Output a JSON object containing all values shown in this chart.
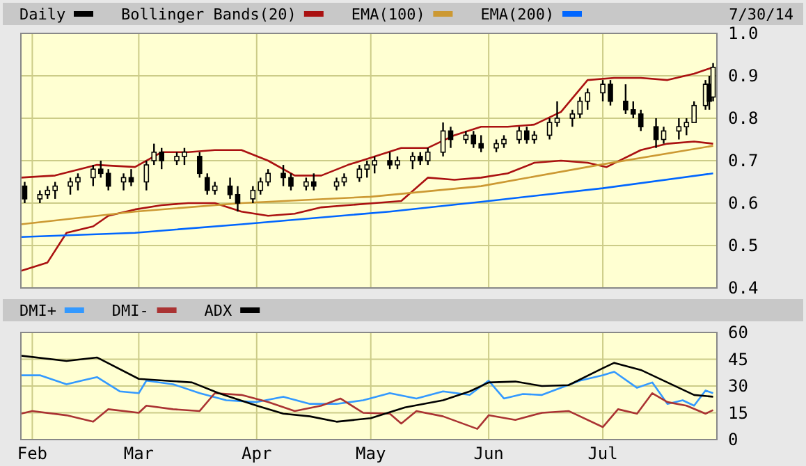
{
  "chart_data": [
    {
      "type": "candlestick",
      "annotations": [
        "7/30/14"
      ],
      "xlim": [
        "--01-29",
        "--07-31"
      ],
      "xticks": [
        {
          "value": "--02-01",
          "label": null
        },
        {
          "value": "--03-01",
          "label": null
        },
        {
          "value": "--04-01",
          "label": null
        },
        {
          "value": "--05-01",
          "label": null
        },
        {
          "value": "--06-01",
          "label": null
        },
        {
          "value": "--07-01",
          "label": null
        }
      ],
      "ylim": [
        0.4,
        1.0
      ],
      "yticks": [
        {
          "value": 0.4,
          "label": "0.4"
        },
        {
          "value": 0.5,
          "label": "0.5"
        },
        {
          "value": 0.6,
          "label": "0.6"
        },
        {
          "value": 0.7,
          "label": "0.7"
        },
        {
          "value": 0.8,
          "label": "0.8"
        },
        {
          "value": 0.9,
          "label": "0.9"
        },
        {
          "value": 1.0,
          "label": "1.0"
        }
      ],
      "tick_labels": "y",
      "grid": true,
      "legend": "top left",
      "series": [
        {
          "type": "candlestick",
          "name": "Daily",
          "color": "#000000",
          "x": [
            "--01-30",
            "--02-03",
            "--02-05",
            "--02-07",
            "--02-11",
            "--02-13",
            "--02-17",
            "--02-19",
            "--02-21",
            "--02-25",
            "--02-27",
            "--03-03",
            "--03-05",
            "--03-07",
            "--03-11",
            "--03-13",
            "--03-17",
            "--03-19",
            "--03-21",
            "--03-25",
            "--03-27",
            "--03-31",
            "--04-02",
            "--04-04",
            "--04-08",
            "--04-10",
            "--04-14",
            "--04-16",
            "--04-22",
            "--04-24",
            "--04-28",
            "--04-30",
            "--05-02",
            "--05-06",
            "--05-08",
            "--05-12",
            "--05-14",
            "--05-16",
            "--05-20",
            "--05-22",
            "--05-26",
            "--05-28",
            "--05-30",
            "--06-03",
            "--06-05",
            "--06-09",
            "--06-11",
            "--06-13",
            "--06-17",
            "--06-19",
            "--06-23",
            "--06-25",
            "--06-27",
            "--07-01",
            "--07-03",
            "--07-07",
            "--07-09",
            "--07-11",
            "--07-15",
            "--07-17",
            "--07-21",
            "--07-23",
            "--07-25",
            "--07-28",
            "--07-29",
            "--07-30"
          ],
          "ohlc": [
            [
              0.64,
              0.65,
              0.6,
              0.61
            ],
            [
              0.61,
              0.63,
              0.6,
              0.62
            ],
            [
              0.62,
              0.64,
              0.61,
              0.63
            ],
            [
              0.63,
              0.65,
              0.61,
              0.64
            ],
            [
              0.64,
              0.66,
              0.62,
              0.65
            ],
            [
              0.65,
              0.67,
              0.63,
              0.66
            ],
            [
              0.66,
              0.69,
              0.64,
              0.68
            ],
            [
              0.68,
              0.7,
              0.66,
              0.67
            ],
            [
              0.67,
              0.68,
              0.63,
              0.64
            ],
            [
              0.65,
              0.67,
              0.63,
              0.66
            ],
            [
              0.66,
              0.68,
              0.64,
              0.65
            ],
            [
              0.65,
              0.7,
              0.63,
              0.69
            ],
            [
              0.7,
              0.74,
              0.69,
              0.72
            ],
            [
              0.72,
              0.73,
              0.68,
              0.7
            ],
            [
              0.7,
              0.72,
              0.69,
              0.71
            ],
            [
              0.71,
              0.73,
              0.69,
              0.72
            ],
            [
              0.71,
              0.72,
              0.66,
              0.67
            ],
            [
              0.66,
              0.67,
              0.62,
              0.63
            ],
            [
              0.63,
              0.65,
              0.62,
              0.64
            ],
            [
              0.64,
              0.66,
              0.61,
              0.62
            ],
            [
              0.62,
              0.64,
              0.58,
              0.6
            ],
            [
              0.61,
              0.64,
              0.6,
              0.63
            ],
            [
              0.63,
              0.66,
              0.62,
              0.65
            ],
            [
              0.65,
              0.68,
              0.64,
              0.67
            ],
            [
              0.67,
              0.69,
              0.64,
              0.66
            ],
            [
              0.66,
              0.67,
              0.63,
              0.64
            ],
            [
              0.64,
              0.66,
              0.63,
              0.65
            ],
            [
              0.65,
              0.67,
              0.63,
              0.64
            ],
            [
              0.64,
              0.66,
              0.63,
              0.65
            ],
            [
              0.65,
              0.67,
              0.64,
              0.66
            ],
            [
              0.66,
              0.69,
              0.65,
              0.68
            ],
            [
              0.68,
              0.7,
              0.66,
              0.69
            ],
            [
              0.69,
              0.71,
              0.67,
              0.7
            ],
            [
              0.7,
              0.72,
              0.68,
              0.69
            ],
            [
              0.69,
              0.71,
              0.68,
              0.7
            ],
            [
              0.7,
              0.72,
              0.68,
              0.71
            ],
            [
              0.71,
              0.72,
              0.69,
              0.7
            ],
            [
              0.7,
              0.73,
              0.69,
              0.72
            ],
            [
              0.72,
              0.79,
              0.71,
              0.77
            ],
            [
              0.77,
              0.78,
              0.73,
              0.75
            ],
            [
              0.75,
              0.77,
              0.74,
              0.76
            ],
            [
              0.76,
              0.77,
              0.73,
              0.74
            ],
            [
              0.74,
              0.76,
              0.72,
              0.73
            ],
            [
              0.73,
              0.75,
              0.72,
              0.74
            ],
            [
              0.74,
              0.76,
              0.73,
              0.75
            ],
            [
              0.75,
              0.78,
              0.74,
              0.77
            ],
            [
              0.77,
              0.78,
              0.74,
              0.75
            ],
            [
              0.75,
              0.77,
              0.74,
              0.76
            ],
            [
              0.76,
              0.8,
              0.75,
              0.79
            ],
            [
              0.79,
              0.84,
              0.78,
              0.8
            ],
            [
              0.8,
              0.82,
              0.78,
              0.81
            ],
            [
              0.81,
              0.85,
              0.8,
              0.84
            ],
            [
              0.84,
              0.87,
              0.82,
              0.86
            ],
            [
              0.86,
              0.89,
              0.84,
              0.88
            ],
            [
              0.88,
              0.89,
              0.83,
              0.84
            ],
            [
              0.84,
              0.88,
              0.81,
              0.82
            ],
            [
              0.82,
              0.84,
              0.8,
              0.81
            ],
            [
              0.81,
              0.82,
              0.77,
              0.78
            ],
            [
              0.78,
              0.8,
              0.73,
              0.75
            ],
            [
              0.75,
              0.78,
              0.74,
              0.77
            ],
            [
              0.77,
              0.8,
              0.75,
              0.78
            ],
            [
              0.78,
              0.8,
              0.76,
              0.79
            ],
            [
              0.79,
              0.84,
              0.79,
              0.83
            ],
            [
              0.83,
              0.89,
              0.82,
              0.88
            ],
            [
              0.88,
              0.9,
              0.82,
              0.84
            ],
            [
              0.85,
              0.93,
              0.84,
              0.92
            ]
          ]
        },
        {
          "type": "line",
          "name": "Bollinger Bands(20)",
          "color": "#aa1111",
          "x": [
            "--01-29",
            "--02-07",
            "--02-18",
            "--02-28",
            "--03-07",
            "--03-14",
            "--03-21",
            "--03-28",
            "--04-04",
            "--04-11",
            "--04-18",
            "--04-25",
            "--05-02",
            "--05-09",
            "--05-16",
            "--05-23",
            "--05-30",
            "--06-06",
            "--06-13",
            "--06-20",
            "--06-27",
            "--07-04",
            "--07-11",
            "--07-18",
            "--07-25",
            "--07-30"
          ],
          "values": [
            0.66,
            0.665,
            0.69,
            0.685,
            0.72,
            0.72,
            0.725,
            0.725,
            0.7,
            0.665,
            0.665,
            0.69,
            0.71,
            0.73,
            0.73,
            0.76,
            0.78,
            0.78,
            0.785,
            0.815,
            0.89,
            0.895,
            0.895,
            0.89,
            0.905,
            0.92
          ]
        },
        {
          "type": "line",
          "color": "#aa1111",
          "x": [
            "--01-29",
            "--02-05",
            "--02-10",
            "--02-17",
            "--02-21",
            "--02-28",
            "--03-07",
            "--03-14",
            "--03-21",
            "--03-28",
            "--04-04",
            "--04-11",
            "--04-18",
            "--04-25",
            "--05-02",
            "--05-09",
            "--05-16",
            "--05-23",
            "--05-30",
            "--06-06",
            "--06-13",
            "--06-20",
            "--06-27",
            "--07-02",
            "--07-11",
            "--07-18",
            "--07-25",
            "--07-30"
          ],
          "values": [
            0.44,
            0.46,
            0.53,
            0.545,
            0.57,
            0.585,
            0.595,
            0.6,
            0.6,
            0.58,
            0.57,
            0.575,
            0.59,
            0.595,
            0.6,
            0.605,
            0.66,
            0.655,
            0.66,
            0.67,
            0.695,
            0.7,
            0.695,
            0.685,
            0.725,
            0.74,
            0.745,
            0.74
          ]
        },
        {
          "type": "line",
          "name": "EMA(100)",
          "color": "#cc9933",
          "x": [
            "--01-29",
            "--02-28",
            "--03-28",
            "--05-01",
            "--05-30",
            "--06-30",
            "--07-30"
          ],
          "values": [
            0.55,
            0.58,
            0.6,
            0.615,
            0.64,
            0.69,
            0.735
          ]
        },
        {
          "type": "line",
          "name": "EMA(200)",
          "color": "#0066ff",
          "x": [
            "--01-29",
            "--02-28",
            "--03-28",
            "--05-06",
            "--06-01",
            "--07-01",
            "--07-30"
          ],
          "values": [
            0.52,
            0.53,
            0.55,
            0.58,
            0.605,
            0.635,
            0.67
          ]
        }
      ]
    },
    {
      "type": "line",
      "xlim": [
        "--01-29",
        "--07-31"
      ],
      "xticks": [
        {
          "value": "--02-01",
          "label": "Feb"
        },
        {
          "value": "--03-01",
          "label": "Mar"
        },
        {
          "value": "--04-01",
          "label": "Apr"
        },
        {
          "value": "--05-01",
          "label": "May"
        },
        {
          "value": "--06-01",
          "label": "Jun"
        },
        {
          "value": "--07-01",
          "label": "Jul"
        }
      ],
      "ylim": [
        0,
        60
      ],
      "yticks": [
        0,
        15,
        30,
        45,
        60
      ],
      "grid": true,
      "legend": "top left",
      "series": [
        {
          "name": "DMI+",
          "color": "#3399ff",
          "x": [
            "--01-29",
            "--02-03",
            "--02-10",
            "--02-14",
            "--02-18",
            "--02-24",
            "--03-01",
            "--03-03",
            "--03-10",
            "--03-17",
            "--03-24",
            "--04-01",
            "--04-08",
            "--04-15",
            "--04-22",
            "--04-29",
            "--05-06",
            "--05-13",
            "--05-20",
            "--05-27",
            "--06-01",
            "--06-05",
            "--06-10",
            "--06-15",
            "--06-20",
            "--06-25",
            "--07-01",
            "--07-04",
            "--07-10",
            "--07-14",
            "--07-18",
            "--07-22",
            "--07-25",
            "--07-28",
            "--07-30"
          ],
          "values": [
            36,
            36,
            31,
            33,
            35,
            27,
            26,
            33,
            31,
            26,
            22,
            21,
            24,
            20,
            20,
            22,
            26,
            23,
            27,
            25,
            33,
            23,
            25.5,
            25,
            29,
            33,
            36,
            38,
            29,
            32,
            20,
            22,
            19,
            27.5,
            26
          ]
        },
        {
          "name": "DMI-",
          "color": "#aa3333",
          "x": [
            "--01-29",
            "--02-01",
            "--02-10",
            "--02-17",
            "--02-21",
            "--03-01",
            "--03-03",
            "--03-10",
            "--03-17",
            "--03-21",
            "--03-28",
            "--04-04",
            "--04-11",
            "--04-18",
            "--04-23",
            "--04-29",
            "--05-06",
            "--05-09",
            "--05-13",
            "--05-20",
            "--05-29",
            "--06-01",
            "--06-08",
            "--06-15",
            "--06-22",
            "--07-01",
            "--07-05",
            "--07-10",
            "--07-14",
            "--07-18",
            "--07-23",
            "--07-28",
            "--07-30"
          ],
          "values": [
            14.5,
            16,
            13.6,
            10,
            17,
            15,
            19,
            17,
            16,
            26,
            25,
            21,
            16,
            19,
            23,
            15,
            14.5,
            9,
            16,
            13,
            6,
            13.6,
            11,
            15,
            16,
            7,
            17,
            14.5,
            26,
            21,
            19,
            14.5,
            16.5
          ]
        },
        {
          "name": "ADX",
          "color": "#000000",
          "x": [
            "--01-29",
            "--02-10",
            "--02-18",
            "--03-01",
            "--03-15",
            "--03-22",
            "--04-01",
            "--04-08",
            "--04-15",
            "--04-22",
            "--05-01",
            "--05-10",
            "--05-20",
            "--05-27",
            "--06-01",
            "--06-08",
            "--06-15",
            "--06-22",
            "--07-01",
            "--07-04",
            "--07-11",
            "--07-18",
            "--07-25",
            "--07-30"
          ],
          "values": [
            47,
            44,
            46,
            34,
            32,
            26,
            19,
            14.5,
            13,
            10,
            12,
            18,
            22,
            27,
            32,
            32.5,
            30,
            30.5,
            40,
            43,
            39,
            32,
            25,
            24
          ]
        }
      ]
    }
  ]
}
